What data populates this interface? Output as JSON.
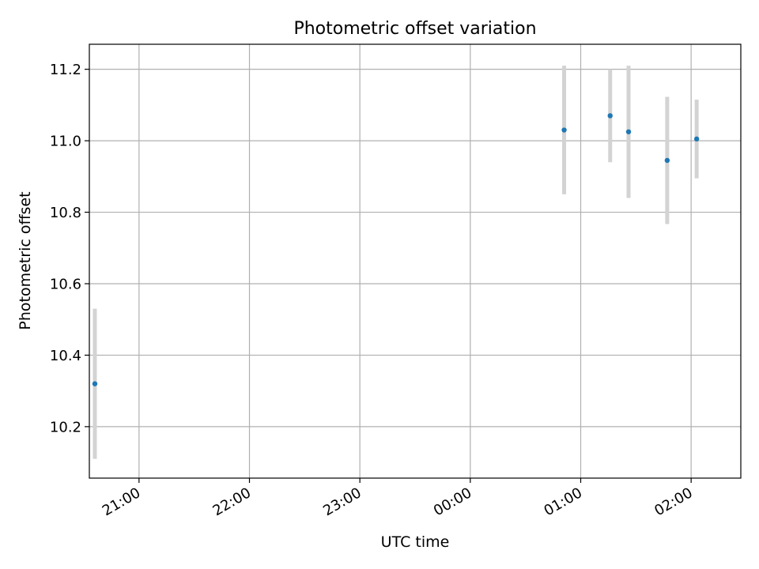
{
  "chart_data": {
    "type": "scatter",
    "title": "Photometric offset variation",
    "xlabel": "UTC time",
    "ylabel": "Photometric offset",
    "x_tick_labels": [
      "21:00",
      "22:00",
      "23:00",
      "00:00",
      "01:00",
      "02:00"
    ],
    "y_tick_labels": [
      "10.2",
      "10.4",
      "10.6",
      "10.8",
      "11.0",
      "11.2"
    ],
    "y_ticks": [
      10.2,
      10.4,
      10.6,
      10.8,
      11.0,
      11.2
    ],
    "xlim": [
      "20:33",
      "02:27"
    ],
    "ylim": [
      10.056,
      11.27
    ],
    "grid": true,
    "legend": "none",
    "series": [
      {
        "x": [
          "20:36",
          "00:51",
          "01:16",
          "01:26",
          "01:47",
          "02:03"
        ],
        "y": [
          10.32,
          11.03,
          11.07,
          11.025,
          10.945,
          11.005
        ],
        "y_error": [
          0.21,
          0.18,
          0.13,
          0.185,
          0.178,
          0.11
        ]
      }
    ]
  },
  "colors": {
    "point": "#1f77b4",
    "error_bar": "#d3d3d3",
    "grid": "#b0b0b0",
    "axes": "#000000",
    "background": "#ffffff"
  }
}
